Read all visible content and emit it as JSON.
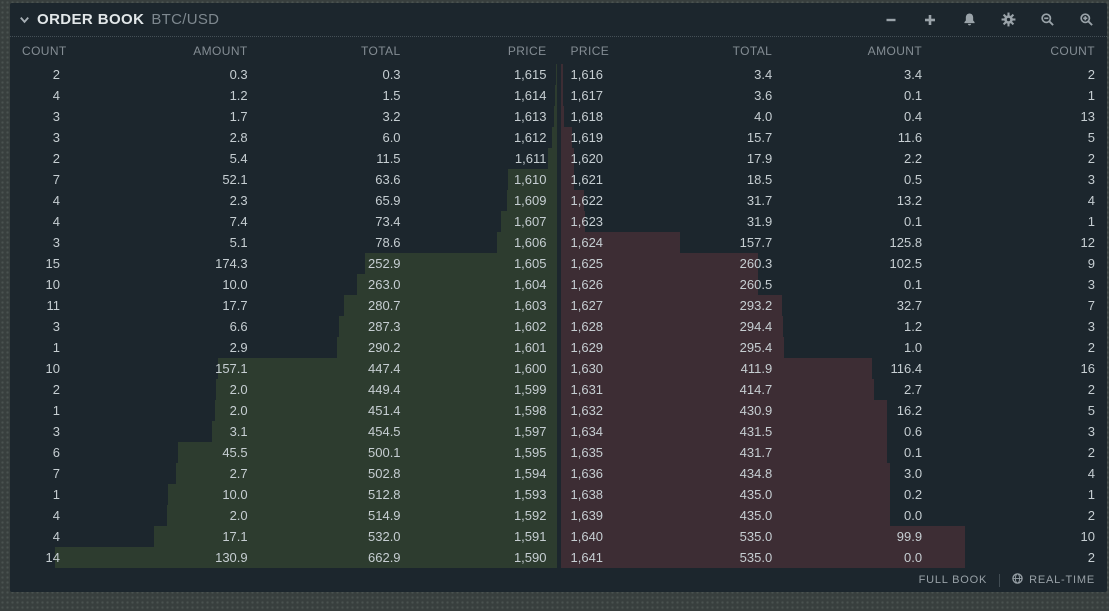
{
  "header": {
    "title": "ORDER BOOK",
    "symbol": "BTC/USD"
  },
  "columns": {
    "bids": [
      "COUNT",
      "AMOUNT",
      "TOTAL",
      "PRICE"
    ],
    "asks": [
      "PRICE",
      "TOTAL",
      "AMOUNT",
      "COUNT"
    ]
  },
  "book": {
    "bids": [
      {
        "count": "2",
        "amount": "0.3",
        "total": "0.3",
        "price": "1,615"
      },
      {
        "count": "4",
        "amount": "1.2",
        "total": "1.5",
        "price": "1,614"
      },
      {
        "count": "3",
        "amount": "1.7",
        "total": "3.2",
        "price": "1,613"
      },
      {
        "count": "3",
        "amount": "2.8",
        "total": "6.0",
        "price": "1,612"
      },
      {
        "count": "2",
        "amount": "5.4",
        "total": "11.5",
        "price": "1,611"
      },
      {
        "count": "7",
        "amount": "52.1",
        "total": "63.6",
        "price": "1,610"
      },
      {
        "count": "4",
        "amount": "2.3",
        "total": "65.9",
        "price": "1,609"
      },
      {
        "count": "4",
        "amount": "7.4",
        "total": "73.4",
        "price": "1,607"
      },
      {
        "count": "3",
        "amount": "5.1",
        "total": "78.6",
        "price": "1,606"
      },
      {
        "count": "15",
        "amount": "174.3",
        "total": "252.9",
        "price": "1,605"
      },
      {
        "count": "10",
        "amount": "10.0",
        "total": "263.0",
        "price": "1,604"
      },
      {
        "count": "11",
        "amount": "17.7",
        "total": "280.7",
        "price": "1,603"
      },
      {
        "count": "3",
        "amount": "6.6",
        "total": "287.3",
        "price": "1,602"
      },
      {
        "count": "1",
        "amount": "2.9",
        "total": "290.2",
        "price": "1,601"
      },
      {
        "count": "10",
        "amount": "157.1",
        "total": "447.4",
        "price": "1,600"
      },
      {
        "count": "2",
        "amount": "2.0",
        "total": "449.4",
        "price": "1,599"
      },
      {
        "count": "1",
        "amount": "2.0",
        "total": "451.4",
        "price": "1,598"
      },
      {
        "count": "3",
        "amount": "3.1",
        "total": "454.5",
        "price": "1,597"
      },
      {
        "count": "6",
        "amount": "45.5",
        "total": "500.1",
        "price": "1,595"
      },
      {
        "count": "7",
        "amount": "2.7",
        "total": "502.8",
        "price": "1,594"
      },
      {
        "count": "1",
        "amount": "10.0",
        "total": "512.8",
        "price": "1,593"
      },
      {
        "count": "4",
        "amount": "2.0",
        "total": "514.9",
        "price": "1,592"
      },
      {
        "count": "4",
        "amount": "17.1",
        "total": "532.0",
        "price": "1,591"
      },
      {
        "count": "14",
        "amount": "130.9",
        "total": "662.9",
        "price": "1,590"
      }
    ],
    "asks": [
      {
        "price": "1,616",
        "total": "3.4",
        "amount": "3.4",
        "count": "2"
      },
      {
        "price": "1,617",
        "total": "3.6",
        "amount": "0.1",
        "count": "1"
      },
      {
        "price": "1,618",
        "total": "4.0",
        "amount": "0.4",
        "count": "13"
      },
      {
        "price": "1,619",
        "total": "15.7",
        "amount": "11.6",
        "count": "5"
      },
      {
        "price": "1,620",
        "total": "17.9",
        "amount": "2.2",
        "count": "2"
      },
      {
        "price": "1,621",
        "total": "18.5",
        "amount": "0.5",
        "count": "3"
      },
      {
        "price": "1,622",
        "total": "31.7",
        "amount": "13.2",
        "count": "4"
      },
      {
        "price": "1,623",
        "total": "31.9",
        "amount": "0.1",
        "count": "1"
      },
      {
        "price": "1,624",
        "total": "157.7",
        "amount": "125.8",
        "count": "12"
      },
      {
        "price": "1,625",
        "total": "260.3",
        "amount": "102.5",
        "count": "9"
      },
      {
        "price": "1,626",
        "total": "260.5",
        "amount": "0.1",
        "count": "3"
      },
      {
        "price": "1,627",
        "total": "293.2",
        "amount": "32.7",
        "count": "7"
      },
      {
        "price": "1,628",
        "total": "294.4",
        "amount": "1.2",
        "count": "3"
      },
      {
        "price": "1,629",
        "total": "295.4",
        "amount": "1.0",
        "count": "2"
      },
      {
        "price": "1,630",
        "total": "411.9",
        "amount": "116.4",
        "count": "16"
      },
      {
        "price": "1,631",
        "total": "414.7",
        "amount": "2.7",
        "count": "2"
      },
      {
        "price": "1,632",
        "total": "430.9",
        "amount": "16.2",
        "count": "5"
      },
      {
        "price": "1,634",
        "total": "431.5",
        "amount": "0.6",
        "count": "3"
      },
      {
        "price": "1,635",
        "total": "431.7",
        "amount": "0.1",
        "count": "2"
      },
      {
        "price": "1,636",
        "total": "434.8",
        "amount": "3.0",
        "count": "4"
      },
      {
        "price": "1,638",
        "total": "435.0",
        "amount": "0.2",
        "count": "1"
      },
      {
        "price": "1,639",
        "total": "435.0",
        "amount": "0.0",
        "count": "2"
      },
      {
        "price": "1,640",
        "total": "535.0",
        "amount": "99.9",
        "count": "10"
      },
      {
        "price": "1,641",
        "total": "535.0",
        "amount": "0.0",
        "count": "2"
      }
    ]
  },
  "depth": {
    "scale_max": 722,
    "bid_color": "#2d3c2f",
    "ask_color": "#3d2d34"
  },
  "footer": {
    "full_book_label": "FULL BOOK",
    "realtime_label": "REAL-TIME"
  },
  "colors": {
    "panel_background": "#1c262d",
    "text_primary": "#c6ced2",
    "text_muted": "#848d94"
  }
}
